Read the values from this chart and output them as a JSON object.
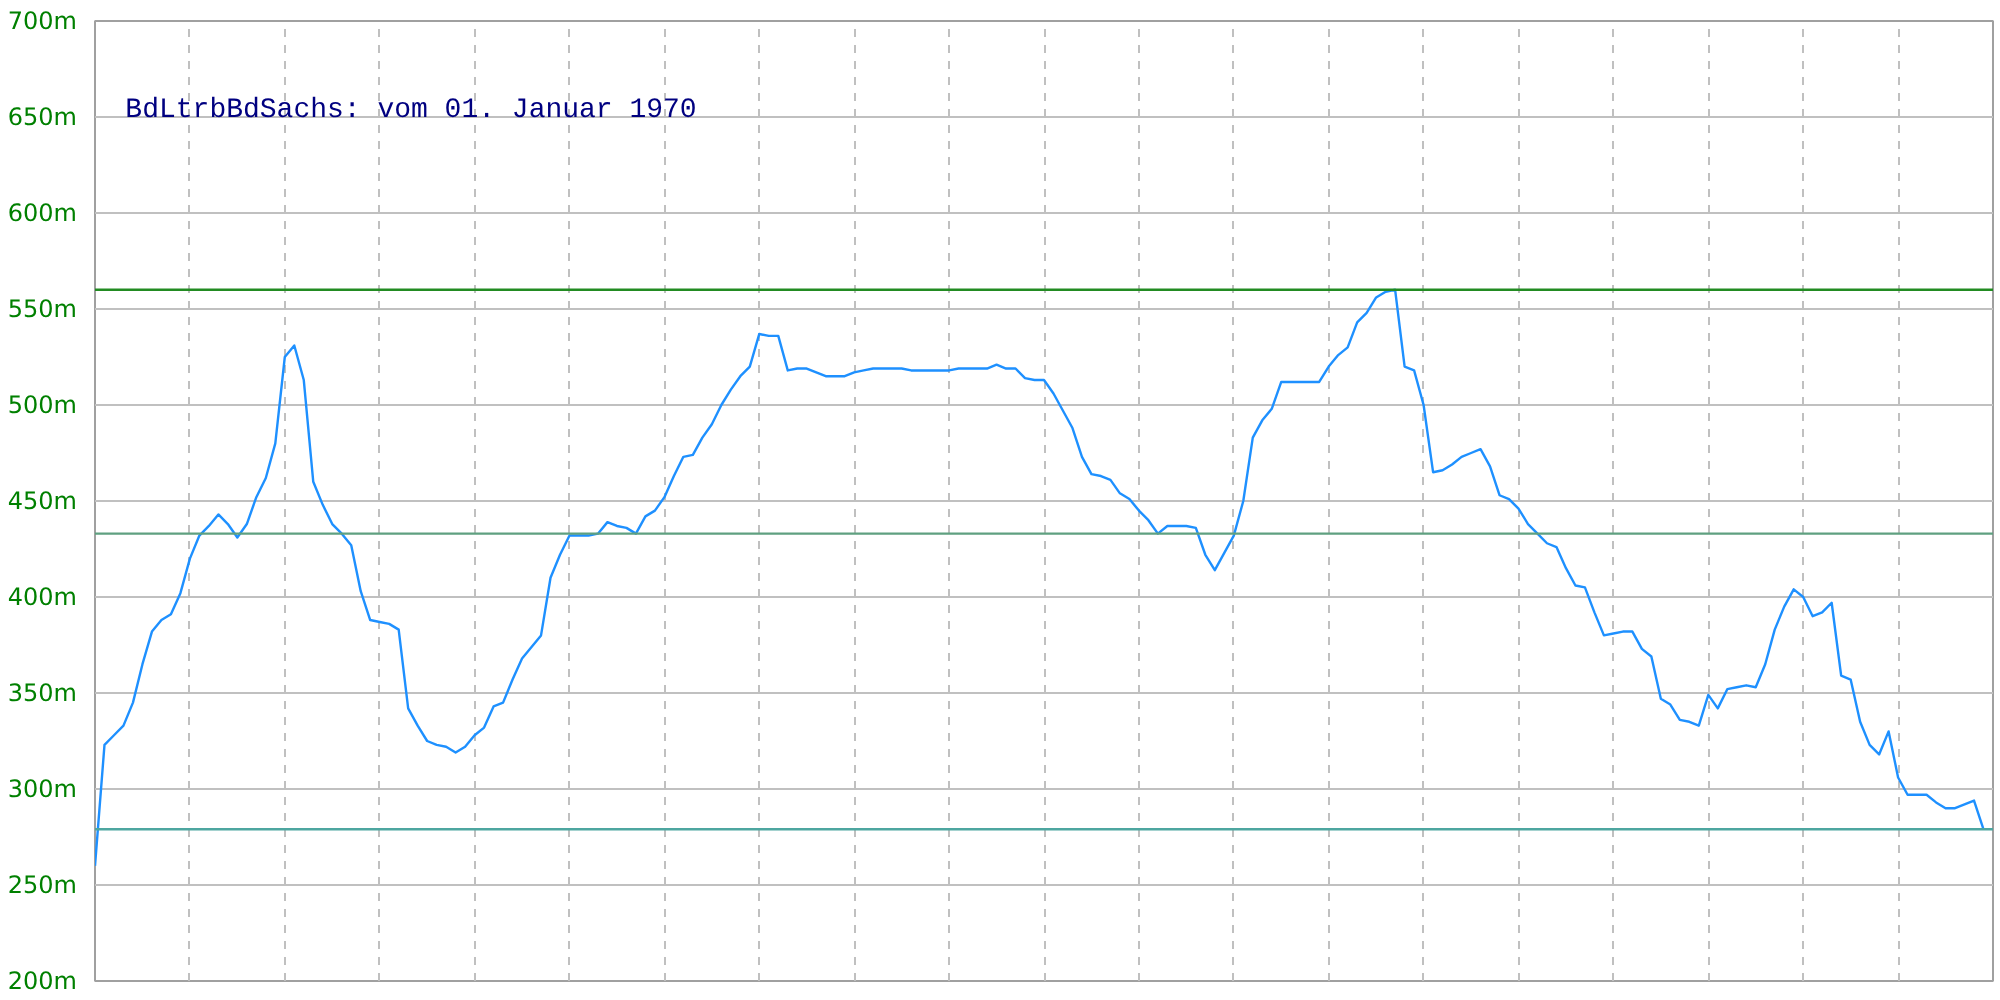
{
  "chart_data": {
    "type": "line",
    "title": "BdLtrbBdSachs: vom 01. Januar 1970",
    "categories": [
      null,
      null,
      null,
      null,
      null,
      null,
      null,
      null,
      null,
      null,
      null,
      null,
      null,
      null,
      null,
      null,
      null,
      null,
      null,
      null,
      null,
      null,
      null,
      null,
      null,
      null,
      null,
      null,
      null,
      null,
      null,
      null,
      null,
      null,
      null,
      null,
      null,
      null,
      null,
      null,
      null,
      null,
      null,
      null,
      null,
      null,
      null,
      null,
      null,
      null,
      null,
      null,
      null,
      null,
      null,
      null,
      null,
      null,
      null,
      null,
      null,
      null,
      null,
      null,
      null,
      null,
      null,
      null,
      null,
      null,
      null,
      null,
      null,
      null,
      null,
      null,
      null,
      null,
      null,
      null,
      null,
      null,
      null,
      null,
      null,
      null,
      null,
      null,
      null,
      null,
      null,
      null,
      null,
      null,
      null,
      null,
      null,
      null,
      null,
      null,
      null,
      null,
      null,
      null,
      null,
      null,
      null,
      null,
      null,
      null,
      null,
      null,
      null,
      null,
      null,
      null,
      null,
      null,
      null,
      null,
      null,
      null,
      null,
      null,
      null,
      null,
      null,
      null,
      null,
      null,
      null,
      null,
      null,
      null,
      null,
      null,
      null,
      null,
      null,
      null,
      null,
      null,
      null,
      null,
      null,
      null,
      null,
      null,
      null,
      null,
      null,
      null,
      null,
      null,
      null,
      null,
      null,
      null,
      null,
      null,
      null,
      null,
      null,
      null,
      null,
      null,
      null,
      null,
      null,
      null,
      null,
      null,
      null,
      null,
      null,
      null,
      null,
      null,
      null,
      null,
      null,
      null,
      null,
      null,
      null,
      null,
      null,
      null,
      null,
      null,
      null,
      null,
      null,
      null,
      null,
      null,
      null,
      null,
      null,
      null
    ],
    "series": [
      {
        "color": "#1e90ff",
        "values": [
          260,
          323,
          328,
          333,
          345,
          365,
          382,
          388,
          391,
          402,
          420,
          432,
          437,
          443,
          438,
          431,
          438,
          452,
          462,
          480,
          525,
          531,
          513,
          460,
          448,
          438,
          433,
          427,
          403,
          388,
          387,
          386,
          383,
          342,
          333,
          325,
          323,
          322,
          319,
          322,
          328,
          332,
          343,
          345,
          357,
          368,
          374,
          380,
          410,
          422,
          432,
          432,
          432,
          433,
          439,
          437,
          436,
          433,
          442,
          445,
          452,
          463,
          473,
          474,
          483,
          490,
          500,
          508,
          515,
          520,
          537,
          536,
          536,
          518,
          519,
          519,
          517,
          515,
          515,
          515,
          517,
          518,
          519,
          519,
          519,
          519,
          518,
          518,
          518,
          518,
          518,
          519,
          519,
          519,
          519,
          521,
          519,
          519,
          514,
          513,
          513,
          506,
          497,
          488,
          473,
          464,
          463,
          461,
          454,
          451,
          445,
          440,
          433,
          437,
          437,
          437,
          436,
          422,
          414,
          423,
          432,
          450,
          483,
          492,
          498,
          512,
          512,
          512,
          512,
          512,
          520,
          526,
          530,
          543,
          548,
          556,
          559,
          560,
          520,
          518,
          500,
          465,
          466,
          469,
          473,
          475,
          477,
          468,
          453,
          451,
          446,
          438,
          433,
          428,
          426,
          415,
          406,
          405,
          392,
          380,
          381,
          382,
          382,
          373,
          369,
          347,
          344,
          336,
          335,
          333,
          349,
          342,
          352,
          353,
          354,
          353,
          365,
          383,
          395,
          404,
          400,
          390,
          392,
          397,
          359,
          357,
          335,
          323,
          318,
          330,
          306,
          297,
          297,
          297,
          293,
          290,
          290,
          292,
          294,
          279
        ]
      }
    ],
    "ylim": [
      200,
      700
    ],
    "yticks": [
      {
        "value": 200,
        "label": "200m"
      },
      {
        "value": 250,
        "label": "250m"
      },
      {
        "value": 300,
        "label": "300m"
      },
      {
        "value": 350,
        "label": "350m"
      },
      {
        "value": 400,
        "label": "400m"
      },
      {
        "value": 450,
        "label": "450m"
      },
      {
        "value": 500,
        "label": "500m"
      },
      {
        "value": 550,
        "label": "550m"
      },
      {
        "value": 600,
        "label": "600m"
      },
      {
        "value": 650,
        "label": "650m"
      },
      {
        "value": 700,
        "label": "700m"
      }
    ],
    "grid": true,
    "tick_labels": "y",
    "line_style": "solid",
    "ref_lines": [
      {
        "axis": "y",
        "value": 560,
        "color": "#228b22"
      },
      {
        "axis": "y",
        "value": 433,
        "color": "#5fa080"
      },
      {
        "axis": "y",
        "value": 279,
        "color": "#4da6a0"
      }
    ]
  }
}
